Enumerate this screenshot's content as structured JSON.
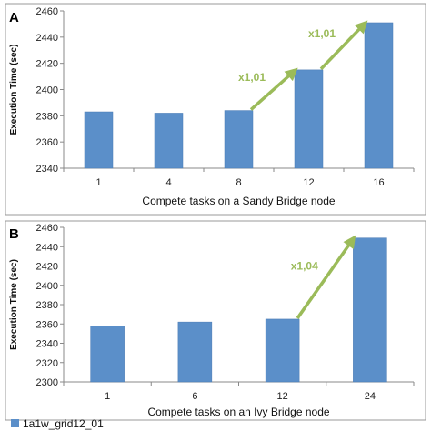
{
  "colors": {
    "bar": "#5b8fc9",
    "bar_edge": "#4a7ab3",
    "arrow": "#9bbb59",
    "frame": "#999999"
  },
  "legend": {
    "label": "1a1w_grid12_01"
  },
  "chart_data": [
    {
      "type": "bar",
      "panel_label": "A",
      "title": "",
      "xlabel": "Compete tasks on a Sandy Bridge node",
      "ylabel": "Execution Time (sec)",
      "categories": [
        "1",
        "4",
        "8",
        "12",
        "16"
      ],
      "series": [
        {
          "name": "1a1w_grid12_01",
          "values": [
            2383,
            2382,
            2384,
            2415,
            2451
          ]
        }
      ],
      "ylim": [
        2340,
        2460
      ],
      "yticks": [
        2340,
        2360,
        2380,
        2400,
        2420,
        2440,
        2460
      ],
      "grid": false,
      "annotations": [
        {
          "text": "x1,01",
          "from_category": "8",
          "to_category": "12"
        },
        {
          "text": "x1,01",
          "from_category": "12",
          "to_category": "16"
        }
      ]
    },
    {
      "type": "bar",
      "panel_label": "B",
      "title": "",
      "xlabel": "Compete tasks on an Ivy Bridge node",
      "ylabel": "Execution Time (sec)",
      "categories": [
        "1",
        "6",
        "12",
        "24"
      ],
      "series": [
        {
          "name": "1a1w_grid12_01",
          "values": [
            2358,
            2362,
            2365,
            2449
          ]
        }
      ],
      "ylim": [
        2300,
        2460
      ],
      "yticks": [
        2300,
        2320,
        2340,
        2360,
        2380,
        2400,
        2420,
        2440,
        2460
      ],
      "grid": false,
      "annotations": [
        {
          "text": "x1,04",
          "from_category": "12",
          "to_category": "24"
        }
      ]
    }
  ]
}
